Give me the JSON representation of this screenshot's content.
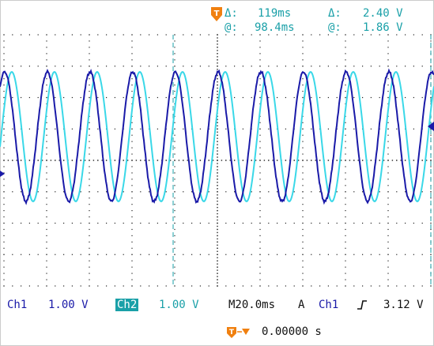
{
  "cursor_readout": {
    "delta_time_label": "Δ:",
    "delta_time": "119ms",
    "delta_volt_label": "Δ:",
    "delta_volt": "2.40 V",
    "at_time_label": "@:",
    "at_time": "98.4ms",
    "at_volt_label": "@:",
    "at_volt": "1.86 V"
  },
  "status_bar": {
    "ch1_label": "Ch1",
    "ch1_scale": "1.00 V",
    "ch2_label": "Ch2",
    "ch2_scale": "1.00 V",
    "timebase": "M20.0ms",
    "acq_mode": "A",
    "trigger_source": "Ch1",
    "trigger_slope_icon": "rising-edge-icon",
    "trigger_level": "3.12 V",
    "trigger_position": "0.00000 s"
  },
  "colors": {
    "ch1": "#1a1aa8",
    "ch2": "#3ad8e8",
    "grid": "#222222",
    "cursor": "#1aa0a8",
    "marker": "#f08010"
  },
  "waveforms": {
    "ch1_period_ms": 20,
    "ch2_period_ms": 20,
    "ch2_phase_lag_ms": 3.3
  }
}
